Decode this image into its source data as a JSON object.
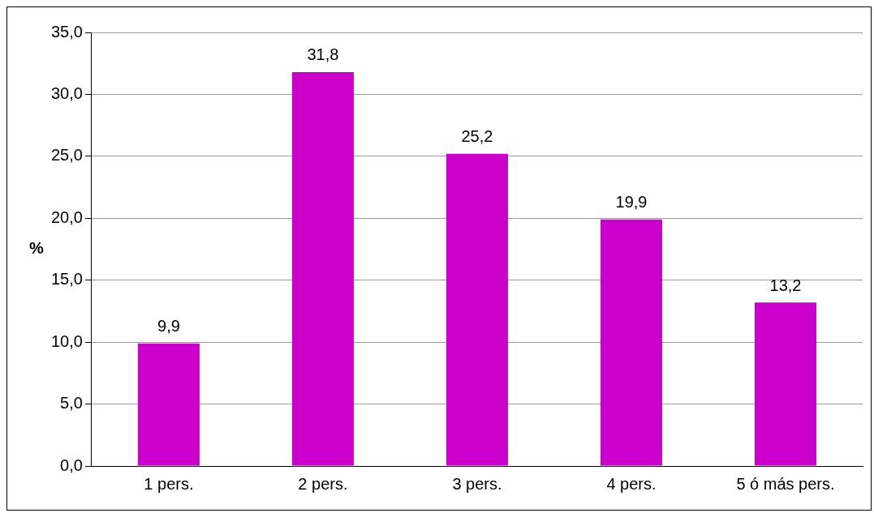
{
  "chart_data": {
    "type": "bar",
    "ylabel": "%",
    "categories": [
      "1 pers.",
      "2 pers.",
      "3 pers.",
      "4 pers.",
      "5 ó más pers."
    ],
    "values": [
      9.9,
      31.8,
      25.2,
      19.9,
      13.2
    ],
    "value_labels": [
      "9,9",
      "31,8",
      "25,2",
      "19,9",
      "13,2"
    ],
    "color": "#cc00cc",
    "ylim": [
      0,
      35
    ],
    "yticks": [
      {
        "value": 0,
        "label": "0,0"
      },
      {
        "value": 5,
        "label": "5,0"
      },
      {
        "value": 10,
        "label": "10,0"
      },
      {
        "value": 15,
        "label": "15,0"
      },
      {
        "value": 20,
        "label": "20,0"
      },
      {
        "value": 25,
        "label": "25,0"
      },
      {
        "value": 30,
        "label": "30,0"
      },
      {
        "value": 35,
        "label": "35,0"
      }
    ],
    "grid": "y",
    "legend": false
  }
}
